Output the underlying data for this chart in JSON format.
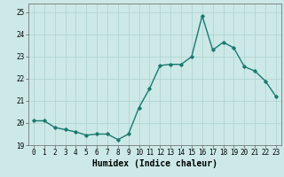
{
  "x": [
    0,
    1,
    2,
    3,
    4,
    5,
    6,
    7,
    8,
    9,
    10,
    11,
    12,
    13,
    14,
    15,
    16,
    17,
    18,
    19,
    20,
    21,
    22,
    23
  ],
  "y": [
    20.1,
    20.1,
    19.8,
    19.7,
    19.6,
    19.45,
    19.5,
    19.5,
    19.25,
    19.5,
    20.7,
    21.55,
    22.6,
    22.65,
    22.65,
    23.0,
    24.85,
    23.3,
    23.65,
    23.4,
    22.55,
    22.35,
    21.9,
    21.2
  ],
  "line_color": "#1a7a6e",
  "marker": "D",
  "markersize": 1.8,
  "linewidth": 1.0,
  "xlabel": "Humidex (Indice chaleur)",
  "ylim": [
    19.0,
    25.4
  ],
  "xlim": [
    -0.5,
    23.5
  ],
  "yticks": [
    19,
    20,
    21,
    22,
    23,
    24,
    25
  ],
  "xticks": [
    0,
    1,
    2,
    3,
    4,
    5,
    6,
    7,
    8,
    9,
    10,
    11,
    12,
    13,
    14,
    15,
    16,
    17,
    18,
    19,
    20,
    21,
    22,
    23
  ],
  "bg_color": "#cce9e7",
  "grid_color": "#b0d4d2",
  "tick_fontsize": 5.5,
  "xlabel_fontsize": 7.0
}
